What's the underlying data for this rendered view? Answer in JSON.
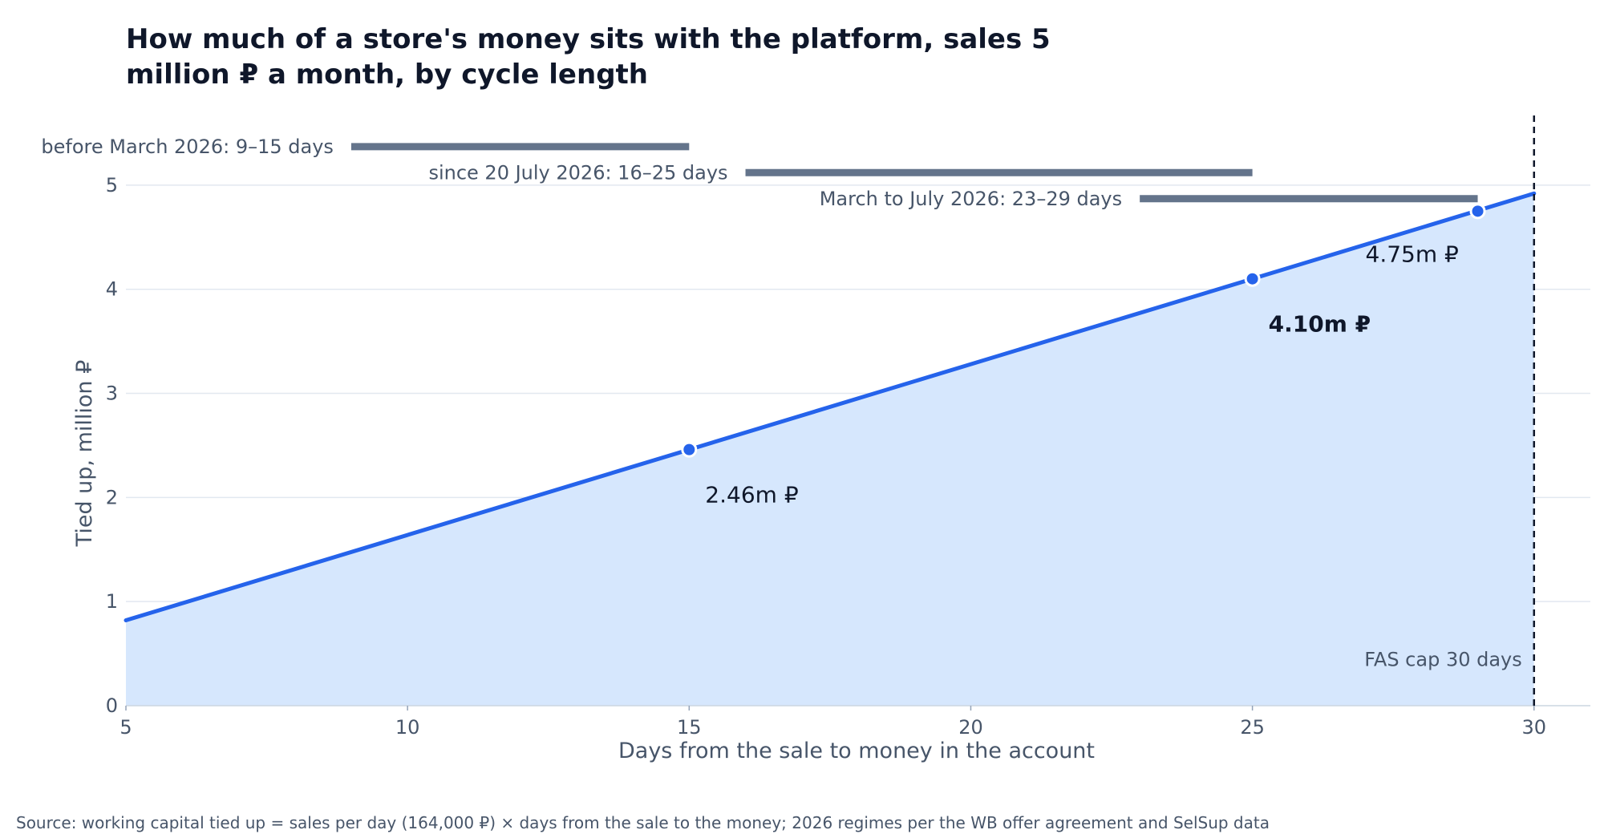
{
  "chart_data": {
    "type": "area",
    "title_lines": [
      "How much of a store's money sits with the platform, sales 5",
      "million ₽ a month, by cycle length"
    ],
    "xlabel": "Days from the sale to money in the account",
    "ylabel": "Tied up, million ₽",
    "xlim": [
      5,
      31
    ],
    "ylim": [
      0,
      5.7
    ],
    "x_ticks": [
      5,
      10,
      15,
      20,
      25,
      30
    ],
    "y_ticks": [
      0,
      1,
      2,
      3,
      4,
      5
    ],
    "line": {
      "x": [
        5,
        30
      ],
      "y": [
        0.82,
        4.92
      ]
    },
    "markers": [
      {
        "x": 15,
        "y": 2.46,
        "label": "2.46m ₽",
        "bold": false
      },
      {
        "x": 25,
        "y": 4.1,
        "label": "4.10m ₽",
        "bold": true
      },
      {
        "x": 29,
        "y": 4.75,
        "label": "4.75m ₽",
        "bold": false
      }
    ],
    "regimes": [
      {
        "label": "before March 2026: 9–15 days",
        "from": 9,
        "to": 15,
        "y": 5.37
      },
      {
        "label": "since 20 July 2026: 16–25 days",
        "from": 16,
        "to": 25,
        "y": 5.12
      },
      {
        "label": "March to July 2026: 23–29 days",
        "from": 23,
        "to": 29,
        "y": 4.87
      }
    ],
    "cap": {
      "x": 30,
      "label": "FAS cap 30 days"
    },
    "grid": true,
    "colors": {
      "line": "#2563eb",
      "fill": "#d6e7fd",
      "regime": "#64748b",
      "cap": "#0f172a"
    }
  },
  "source": "Source: working capital tied up = sales per day (164,000 ₽) × days from the sale to the money; 2026 regimes per the WB offer agreement and SelSup data"
}
